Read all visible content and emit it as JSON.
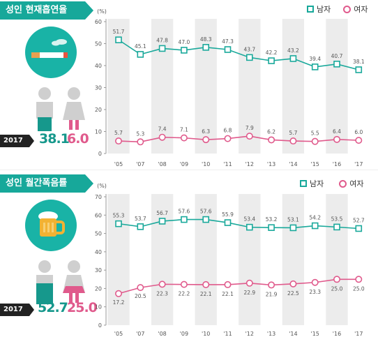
{
  "panels": [
    {
      "title": "성인 현재흡연율",
      "icon": "cigarette-icon",
      "year": "2017",
      "male_value": "38.1",
      "female_value": "6.0",
      "legend": {
        "male": "남자",
        "female": "여자"
      }
    },
    {
      "title": "성인 월간폭음률",
      "icon": "beer-mug-icon",
      "year": "2017",
      "male_value": "52.7",
      "female_value": "25.0",
      "legend": {
        "male": "남자",
        "female": "여자"
      }
    }
  ],
  "colors": {
    "accent": "#17a89a",
    "male": "#1aa99b",
    "female": "#e05a8c",
    "band": "#ececec"
  },
  "chart_data": [
    {
      "type": "line",
      "title": "성인 현재흡연율",
      "ylabel": "(%)",
      "ylim": [
        0,
        60
      ],
      "yticks": [
        0,
        10,
        20,
        30,
        40,
        50,
        60
      ],
      "categories": [
        "'05",
        "'07",
        "'08",
        "'09",
        "'10",
        "'11",
        "'12",
        "'13",
        "'14",
        "'15",
        "'16",
        "'17"
      ],
      "series": [
        {
          "name": "남자",
          "values": [
            51.7,
            45.1,
            47.8,
            47.0,
            48.3,
            47.3,
            43.7,
            42.2,
            43.2,
            39.4,
            40.7,
            38.1
          ],
          "labels": [
            "51.7",
            "45.1",
            "47.8",
            "47.0",
            "48.3",
            "47.3",
            "43.7",
            "42.2",
            "43.2",
            "39.4",
            "40.7",
            "38.1"
          ]
        },
        {
          "name": "여자",
          "values": [
            5.7,
            5.3,
            7.4,
            7.1,
            6.3,
            6.8,
            7.9,
            6.2,
            5.7,
            5.5,
            6.4,
            6.0
          ],
          "labels": [
            "5.7",
            "5.3",
            "7.4",
            "7.1",
            "6.3",
            "6.8",
            "7.9",
            "6.2",
            "5.7",
            "5.5",
            "6.4",
            "6.0"
          ]
        }
      ]
    },
    {
      "type": "line",
      "title": "성인 월간폭음률",
      "ylabel": "(%)",
      "ylim": [
        0,
        70
      ],
      "yticks": [
        0,
        10,
        20,
        30,
        40,
        50,
        60,
        70
      ],
      "categories": [
        "'05",
        "'07",
        "'08",
        "'09",
        "'10",
        "'11",
        "'12",
        "'13",
        "'14",
        "'15",
        "'16",
        "'17"
      ],
      "series": [
        {
          "name": "남자",
          "values": [
            55.3,
            53.7,
            56.7,
            57.6,
            57.6,
            55.9,
            53.4,
            53.2,
            53.1,
            54.2,
            53.5,
            52.7
          ],
          "labels": [
            "55.3",
            "53.7",
            "56.7",
            "57.6",
            "57.6",
            "55.9",
            "53.4",
            "53.2",
            "53.1",
            "54.2",
            "53.5",
            "52.7"
          ]
        },
        {
          "name": "여자",
          "values": [
            17.2,
            20.5,
            22.3,
            22.2,
            22.1,
            22.1,
            22.9,
            21.9,
            22.5,
            23.3,
            25.0,
            25.0
          ],
          "labels": [
            "17.2",
            "20.5",
            "22.3",
            "22.2",
            "22.1",
            "22.1",
            "22.9",
            "21.9",
            "22.5",
            "23.3",
            "25.0",
            "25.0"
          ]
        }
      ]
    }
  ]
}
